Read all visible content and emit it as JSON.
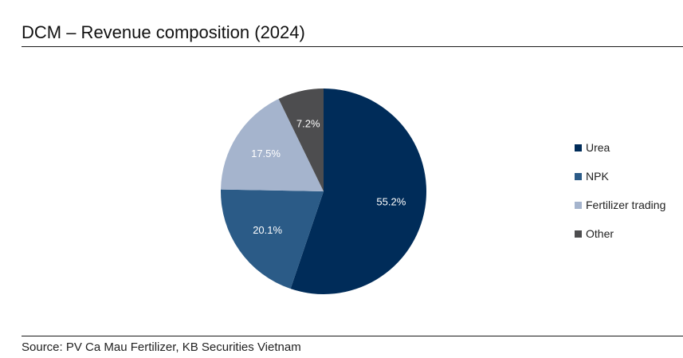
{
  "title": "DCM – Revenue composition (2024)",
  "source": "Source: PV Ca Mau Fertilizer, KB Securities Vietnam",
  "chart_data": {
    "type": "pie",
    "title": "DCM – Revenue composition (2024)",
    "categories": [
      "Urea",
      "NPK",
      "Fertilizer trading",
      "Other"
    ],
    "values": [
      55.2,
      20.1,
      17.5,
      7.2
    ],
    "value_labels": [
      "55.2%",
      "20.1%",
      "17.5%",
      "7.2%"
    ],
    "colors": [
      "#002c59",
      "#2b5b87",
      "#a5b4cd",
      "#4d4d4f"
    ],
    "label_colors": [
      "#ffffff",
      "#ffffff",
      "#ffffff",
      "#ffffff"
    ],
    "start": "12 o'clock",
    "direction": "clockwise",
    "legend_placement": "right"
  }
}
